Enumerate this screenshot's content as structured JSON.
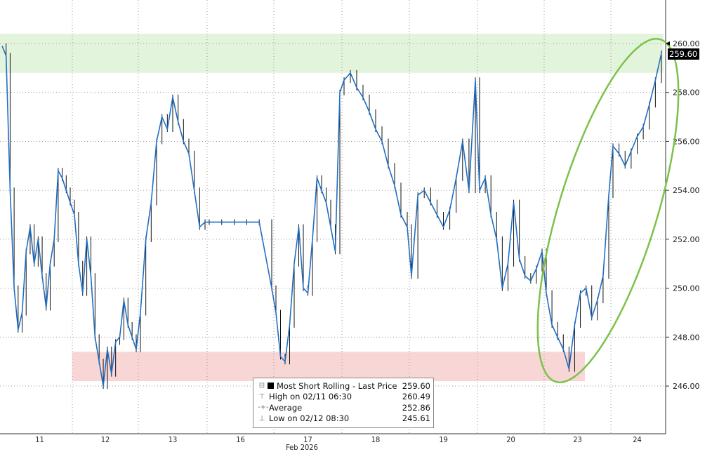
{
  "chart_data": {
    "type": "line",
    "title": "",
    "xlabel": "Feb 2026",
    "ylabel": "",
    "ylim": [
      244.5,
      261.5
    ],
    "grid": true,
    "y_ticks": [
      "246.00",
      "248.00",
      "250.00",
      "252.00",
      "254.00",
      "256.00",
      "258.00",
      "260.00"
    ],
    "x_ticks": [
      "11",
      "12",
      "13",
      "16",
      "17",
      "18",
      "19",
      "20",
      "23",
      "24"
    ],
    "x_month_label": "Feb 2026",
    "series": [
      {
        "name": "Most Short Rolling - Last Price",
        "color": "#1f6fc5",
        "days": [
          {
            "day": "11",
            "values": [
              259.9,
              259.5,
              254,
              250,
              248.3,
              249,
              251.5,
              252.5,
              251,
              252,
              250.5,
              249.2,
              251,
              252,
              254.8,
              254.5,
              254,
              253.5
            ]
          },
          {
            "day": "12",
            "values": [
              253,
              251,
              249.8,
              252,
              250.5,
              248,
              247,
              246,
              247.5,
              246.5,
              247.8,
              248,
              249.5,
              248.5,
              248,
              247.5
            ]
          },
          {
            "day": "13",
            "values": [
              249,
              252,
              253.5,
              256,
              257,
              256.5,
              257.8,
              256.8,
              256,
              255.5,
              254,
              252.5,
              252.7
            ]
          },
          {
            "day": "16",
            "values": [
              252.7,
              252.7,
              252.7,
              252.7,
              252.7,
              250
            ]
          },
          {
            "day": "17",
            "values": [
              249,
              247.2,
              247,
              248.5,
              251,
              252.5,
              250,
              249.8,
              252,
              254.5,
              254,
              253.5,
              252.5,
              251.5,
              258
            ]
          },
          {
            "day": "18",
            "values": [
              258.5,
              258.8,
              258.2,
              257.8,
              257.2,
              256.5,
              256,
              255,
              254.2,
              253,
              252.5
            ]
          },
          {
            "day": "19",
            "values": [
              250.5,
              253.8,
              254,
              253.5,
              253,
              252.5,
              253.2,
              254.5,
              256,
              254,
              258.5
            ]
          },
          {
            "day": "20",
            "values": [
              254,
              254.5,
              253,
              252,
              250,
              251,
              253.5,
              251.2,
              250.5,
              250.3,
              250.8,
              251.5
            ]
          },
          {
            "day": "23",
            "values": [
              249.8,
              248.5,
              248,
              247.5,
              246.7,
              248.5,
              249.8,
              250,
              248.8,
              249.5,
              250.5,
              253.8
            ]
          },
          {
            "day": "24",
            "values": [
              255.8,
              255.5,
              255,
              255.6,
              256.2,
              256.6,
              257.5,
              258.5,
              259.6
            ]
          }
        ]
      }
    ],
    "bands": [
      {
        "kind": "resistance",
        "from": 258.8,
        "to": 260.4,
        "color": "#e3f4dc"
      },
      {
        "kind": "support",
        "from": 246.2,
        "to": 247.4,
        "color": "#f9d6d6"
      }
    ],
    "highlight_color": "#7cc24a",
    "last_price_tag": "259.60"
  },
  "legend": {
    "rows": [
      {
        "label": "Most Short Rolling - Last Price",
        "value": "259.60"
      },
      {
        "label": "High on 02/11 06:30",
        "value": "260.49"
      },
      {
        "label": "Average",
        "value": "252.86"
      },
      {
        "label": "Low on 02/12 08:30",
        "value": "245.61"
      }
    ]
  }
}
